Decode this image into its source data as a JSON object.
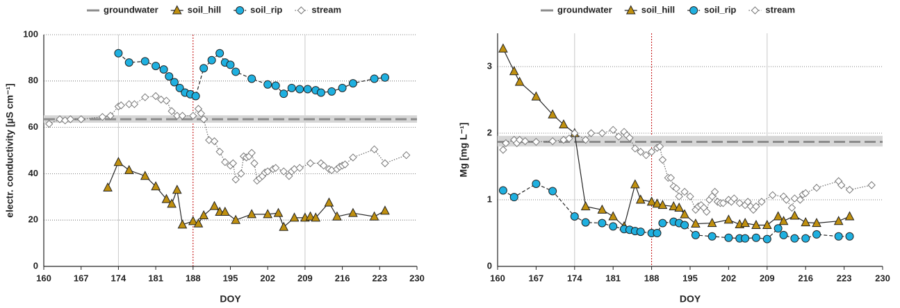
{
  "chart_data": [
    {
      "type": "line",
      "xlabel": "DOY",
      "ylabel": "electr. conductivity [µS cm⁻¹]",
      "xlim": [
        160,
        230
      ],
      "xticks": [
        160,
        167,
        174,
        181,
        188,
        195,
        202,
        209,
        216,
        223,
        230
      ],
      "ylim": [
        0,
        100
      ],
      "yticks": [
        0,
        20,
        40,
        60,
        80,
        100
      ],
      "grid": true,
      "reference_lines": [
        {
          "value": 174,
          "color": "#c8c8c8"
        },
        {
          "value": 188,
          "color": "#c00000"
        },
        {
          "value": 209,
          "color": "#c8c8c8"
        }
      ],
      "series": [
        {
          "name": "groundwater",
          "color": "#8c8c8c",
          "marker": "none",
          "line_style": "longdash",
          "values": [
            63.5
          ],
          "range": [
            62,
            65.2
          ]
        },
        {
          "name": "soil_hill",
          "color": "#c0900f",
          "marker": "triangle",
          "line_style": "solid",
          "x": [
            172,
            174,
            176,
            179,
            181,
            183,
            184,
            185,
            186,
            188,
            189,
            190,
            192,
            193,
            194,
            196,
            199,
            202,
            204,
            205,
            207,
            209,
            210,
            211,
            213.5,
            215,
            218,
            222,
            224
          ],
          "values": [
            34,
            45,
            41.5,
            39,
            34.5,
            29,
            27,
            33,
            18,
            19.5,
            18.5,
            22,
            26,
            23.5,
            23.5,
            20,
            22.5,
            22.5,
            23,
            17,
            21,
            21,
            21.5,
            21,
            27.5,
            21.5,
            23,
            21.5,
            24
          ]
        },
        {
          "name": "soil_rip",
          "color": "#1fb0e0",
          "marker": "circle",
          "line_style": "dash",
          "x": [
            174,
            176,
            179,
            181,
            182.5,
            183.5,
            184.5,
            185.5,
            186.5,
            187.5,
            188.5,
            190,
            191.5,
            193,
            194,
            195,
            196,
            199,
            202,
            203.5,
            205,
            206.5,
            208,
            209.5,
            211,
            212,
            214,
            216,
            218,
            222,
            224
          ],
          "values": [
            92,
            88,
            88.5,
            86.5,
            85,
            82,
            79.5,
            77,
            75,
            74.3,
            73.5,
            85.5,
            89,
            92,
            88,
            87,
            84,
            81,
            78.5,
            78,
            74.5,
            77,
            76.5,
            76.5,
            76,
            75,
            75.5,
            77,
            79,
            81,
            81.5
          ]
        },
        {
          "name": "stream",
          "color": "#ffffff",
          "marker": "diamond",
          "line_style": "dot",
          "x": [
            161,
            163,
            164,
            165,
            167,
            171,
            172.5,
            174,
            174.5,
            176,
            177,
            179,
            181,
            182,
            183,
            184,
            185,
            186,
            188,
            189,
            189.5,
            190,
            191,
            192,
            193,
            194,
            195,
            195.5,
            196,
            197,
            197.5,
            198,
            198.5,
            199,
            199.5,
            200,
            200.5,
            201,
            201.5,
            202,
            203,
            203.5,
            205,
            206,
            206.5,
            207,
            208,
            210,
            212,
            212.5,
            213.5,
            214,
            215,
            215.5,
            216,
            216.5,
            218,
            222,
            224,
            228
          ],
          "values": [
            61.5,
            63.5,
            63,
            63.5,
            63.5,
            64.5,
            65,
            69,
            69.5,
            70,
            70,
            73,
            73.5,
            72,
            71.5,
            67,
            65,
            65,
            65,
            68,
            66,
            63.5,
            54.5,
            54,
            49.5,
            45,
            43.5,
            44.5,
            37.5,
            40,
            47.5,
            47,
            47.5,
            49,
            44.5,
            37,
            38,
            39,
            40.5,
            41,
            42,
            42.5,
            41,
            39,
            41,
            42,
            42.5,
            44.5,
            44.5,
            43.5,
            42,
            41.5,
            42,
            43,
            43.5,
            44,
            47,
            50.5,
            44.5,
            48
          ]
        }
      ]
    },
    {
      "type": "line",
      "xlabel": "DOY",
      "ylabel": "Mg [mg L⁻¹]",
      "xlim": [
        160,
        230
      ],
      "xticks": [
        160,
        167,
        174,
        181,
        188,
        195,
        202,
        209,
        216,
        223,
        230
      ],
      "ylim": [
        0,
        3.5
      ],
      "yticks": [
        0,
        1,
        2,
        3
      ],
      "grid": true,
      "reference_lines": [
        {
          "value": 174,
          "color": "#c8c8c8"
        },
        {
          "value": 188,
          "color": "#c00000"
        },
        {
          "value": 209,
          "color": "#c8c8c8"
        }
      ],
      "series": [
        {
          "name": "groundwater",
          "color": "#8c8c8c",
          "marker": "none",
          "line_style": "longdash",
          "values": [
            1.87
          ],
          "range": [
            1.8,
            1.96
          ]
        },
        {
          "name": "soil_hill",
          "color": "#c0900f",
          "marker": "triangle",
          "line_style": "solid",
          "x": [
            161,
            163,
            164,
            167,
            170,
            172,
            174,
            176,
            179,
            181,
            183,
            185,
            186,
            188,
            189,
            190,
            192,
            193,
            194,
            196,
            199,
            202,
            204,
            205,
            207,
            209,
            211,
            212,
            214,
            216,
            218,
            222,
            224
          ],
          "values": [
            3.27,
            2.93,
            2.77,
            2.55,
            2.28,
            2.13,
            2.0,
            0.9,
            0.85,
            0.75,
            0.6,
            1.23,
            1.0,
            0.97,
            0.94,
            0.92,
            0.9,
            0.88,
            0.78,
            0.64,
            0.65,
            0.7,
            0.63,
            0.65,
            0.62,
            0.62,
            0.75,
            0.68,
            0.76,
            0.66,
            0.65,
            0.68,
            0.75
          ]
        },
        {
          "name": "soil_rip",
          "color": "#1fb0e0",
          "marker": "circle",
          "line_style": "dash",
          "x": [
            161,
            163,
            167,
            170,
            174,
            176,
            179,
            181,
            183,
            184,
            185,
            186,
            188,
            189,
            190,
            192,
            193,
            194,
            196,
            199,
            202,
            204,
            205,
            207,
            209,
            211,
            212,
            214,
            216,
            218,
            222,
            224
          ],
          "values": [
            1.14,
            1.04,
            1.24,
            1.13,
            0.75,
            0.66,
            0.65,
            0.6,
            0.56,
            0.55,
            0.53,
            0.52,
            0.5,
            0.5,
            0.65,
            0.67,
            0.65,
            0.62,
            0.47,
            0.45,
            0.43,
            0.42,
            0.42,
            0.43,
            0.41,
            0.57,
            0.47,
            0.42,
            0.42,
            0.48,
            0.45,
            0.45
          ]
        },
        {
          "name": "stream",
          "color": "#ffffff",
          "marker": "diamond",
          "line_style": "dot",
          "x": [
            161,
            161.5,
            163,
            163.5,
            164,
            165,
            167,
            170,
            172,
            173,
            174,
            176,
            177,
            179,
            181,
            182,
            183,
            183.5,
            184,
            185,
            186,
            187,
            188,
            189,
            189.5,
            190,
            191,
            191.5,
            192,
            192.5,
            193,
            194,
            195,
            196,
            196.5,
            197,
            197.5,
            198,
            198.5,
            199,
            199.5,
            200,
            200.5,
            201,
            202,
            202.5,
            203,
            204,
            205,
            205.5,
            206,
            206.5,
            207,
            208,
            210,
            212,
            212.5,
            213.5,
            214,
            215,
            215.5,
            216,
            218,
            222,
            222.5,
            224,
            228
          ],
          "values": [
            1.75,
            1.85,
            1.9,
            1.85,
            1.9,
            1.88,
            1.87,
            1.88,
            1.9,
            1.92,
            2.0,
            1.9,
            2.0,
            2.0,
            2.05,
            1.95,
            2.02,
            1.97,
            1.93,
            1.77,
            1.72,
            1.67,
            1.72,
            1.78,
            1.8,
            1.6,
            1.33,
            1.33,
            1.2,
            1.17,
            1.05,
            1.12,
            1.05,
            0.85,
            0.9,
            0.92,
            0.88,
            0.82,
            1.0,
            1.05,
            1.12,
            0.97,
            0.95,
            0.95,
            1.0,
            0.97,
            1.02,
            0.95,
            0.92,
            0.97,
            0.9,
            0.85,
            0.9,
            0.97,
            1.07,
            1.05,
            1.0,
            0.88,
            1.02,
            1.0,
            1.08,
            1.1,
            1.18,
            1.28,
            1.22,
            1.15,
            1.22
          ]
        }
      ]
    }
  ]
}
